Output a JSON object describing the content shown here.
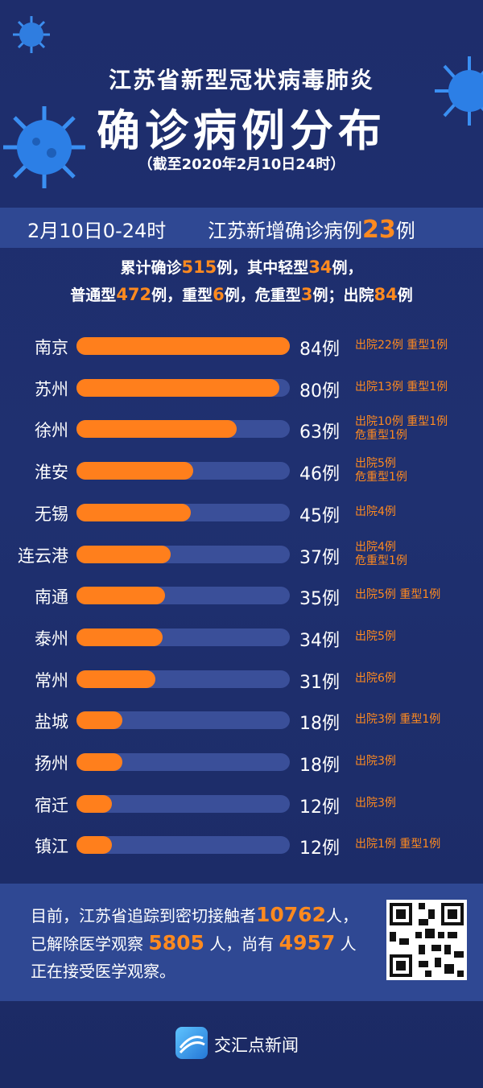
{
  "title": {
    "line1": "江苏省新型冠状病毒肺炎",
    "line2": "确诊病例分布",
    "line3": "（截至2020年2月10日24时）"
  },
  "banner": {
    "date": "2月10日0-24时",
    "prefix": "江苏新增确诊病例",
    "count": "23",
    "suffix": "例"
  },
  "summary": {
    "t1": "累计确诊",
    "total": "515",
    "t2": "例，其中轻型",
    "mild": "34",
    "t3": "例，",
    "t4": "普通型",
    "common": "472",
    "t5": "例，重型",
    "severe": "6",
    "t6": "例，危重型",
    "critical": "3",
    "t7": "例；出院",
    "discharged": "84",
    "t8": "例"
  },
  "chart_data": {
    "type": "bar",
    "orientation": "horizontal",
    "categories": [
      "南京",
      "苏州",
      "徐州",
      "淮安",
      "无锡",
      "连云港",
      "南通",
      "泰州",
      "常州",
      "盐城",
      "扬州",
      "宿迁",
      "镇江"
    ],
    "values": [
      84,
      80,
      63,
      46,
      45,
      37,
      35,
      34,
      31,
      18,
      18,
      12,
      12
    ],
    "value_labels": [
      "84例",
      "80例",
      "63例",
      "46例",
      "45例",
      "37例",
      "35例",
      "34例",
      "31例",
      "18例",
      "18例",
      "12例",
      "12例"
    ],
    "notes": [
      [
        "出院22例 重型1例"
      ],
      [
        "出院13例 重型1例"
      ],
      [
        "出院10例 重型1例",
        "危重型1例"
      ],
      [
        "出院5例",
        "危重型1例"
      ],
      [
        "出院4例"
      ],
      [
        "出院4例",
        "危重型1例"
      ],
      [
        "出院5例 重型1例"
      ],
      [
        "出院5例"
      ],
      [
        "出院6例"
      ],
      [
        "出院3例 重型1例"
      ],
      [
        "出院3例"
      ],
      [
        "出院3例"
      ],
      [
        "出院1例 重型1例"
      ]
    ],
    "xlim": [
      0,
      84
    ],
    "bar_color": "#ff7f1c",
    "track_color": "#3a4f99"
  },
  "contact": {
    "line1a": "目前，江苏省追踪到密切接触者",
    "contacts": "10762",
    "line1b": "人，",
    "line2a": "已解除医学观察",
    "released": "5805",
    "line2b": "人，尚有",
    "observing": "4957",
    "line2c": "人",
    "line3": "正在接受医学观察。"
  },
  "footer": {
    "brand": "交汇点新闻",
    "logo_icon": "jiaohuidian-logo-icon",
    "qr_icon": "qr-code-icon"
  },
  "colors": {
    "background": "#1f2f6e",
    "accent": "#ff8a1f",
    "panel": "#2f4893"
  }
}
